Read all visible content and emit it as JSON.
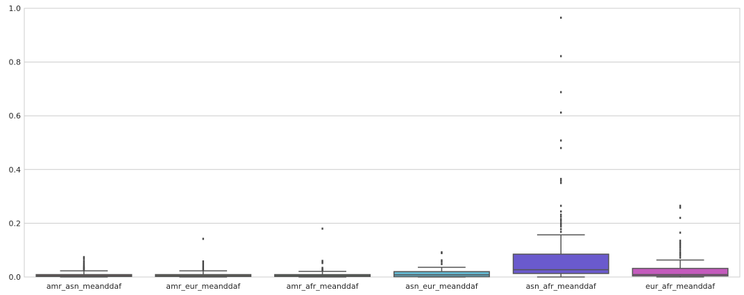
{
  "chart_data": {
    "type": "box",
    "title": "",
    "xlabel": "",
    "ylabel": "",
    "ylim": [
      0,
      1.0
    ],
    "yticks": [
      0.0,
      0.2,
      0.4,
      0.6,
      0.8,
      1.0
    ],
    "ytick_labels": [
      "0.0",
      "0.2",
      "0.4",
      "0.6",
      "0.8",
      "1.0"
    ],
    "grid": "horizontal",
    "categories": [
      "amr_asn_meanddaf",
      "amr_eur_meanddaf",
      "amr_afr_meanddaf",
      "asn_eur_meanddaf",
      "asn_afr_meanddaf",
      "eur_afr_meanddaf"
    ],
    "series": [
      {
        "category": "amr_asn_meanddaf",
        "color": "#d65f5f",
        "min": 0.0,
        "q1": 0.002,
        "median": 0.005,
        "q3": 0.009,
        "max": 0.023,
        "outliers": [
          0.026,
          0.029,
          0.032,
          0.035,
          0.038,
          0.042,
          0.047,
          0.053,
          0.06,
          0.068,
          0.074
        ]
      },
      {
        "category": "amr_eur_meanddaf",
        "color": "#b4a06b",
        "min": 0.0,
        "q1": 0.002,
        "median": 0.005,
        "q3": 0.009,
        "max": 0.023,
        "outliers": [
          0.026,
          0.029,
          0.032,
          0.035,
          0.038,
          0.042,
          0.046,
          0.05,
          0.054,
          0.058,
          0.142
        ]
      },
      {
        "category": "amr_afr_meanddaf",
        "color": "#6aa06a",
        "min": 0.0,
        "q1": 0.002,
        "median": 0.005,
        "q3": 0.009,
        "max": 0.021,
        "outliers": [
          0.024,
          0.027,
          0.03,
          0.034,
          0.052,
          0.056,
          0.06,
          0.18
        ]
      },
      {
        "category": "asn_eur_meanddaf",
        "color": "#64b5cd",
        "min": 0.0,
        "q1": 0.001,
        "median": 0.008,
        "q3": 0.02,
        "max": 0.036,
        "outliers": [
          0.048,
          0.056,
          0.062,
          0.089,
          0.092
        ]
      },
      {
        "category": "asn_afr_meanddaf",
        "color": "#6a5acd",
        "min": 0.0,
        "q1": 0.013,
        "median": 0.027,
        "q3": 0.085,
        "max": 0.157,
        "outliers": [
          0.168,
          0.178,
          0.188,
          0.195,
          0.2,
          0.208,
          0.215,
          0.224,
          0.232,
          0.244,
          0.265,
          0.35,
          0.358,
          0.365,
          0.48,
          0.508,
          0.612,
          0.688,
          0.822,
          0.965
        ]
      },
      {
        "category": "eur_afr_meanddaf",
        "color": "#c45bbd",
        "min": 0.0,
        "q1": 0.004,
        "median": 0.009,
        "q3": 0.032,
        "max": 0.063,
        "outliers": [
          0.072,
          0.08,
          0.086,
          0.092,
          0.1,
          0.108,
          0.115,
          0.122,
          0.128,
          0.135,
          0.165,
          0.22,
          0.258,
          0.265
        ]
      }
    ]
  }
}
